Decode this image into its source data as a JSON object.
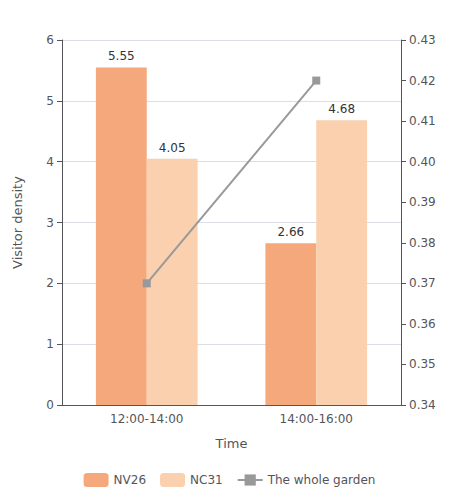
{
  "chart_data": {
    "type": "bar",
    "xlabel": "Time",
    "ylabel": "Visitor density",
    "categories": [
      "12:00-14:00",
      "14:00-16:00"
    ],
    "series": [
      {
        "name": "NV26",
        "type": "bar",
        "color": "#F5A87C",
        "values": [
          5.55,
          2.66
        ],
        "data_labels": true
      },
      {
        "name": "NC31",
        "type": "bar",
        "color": "#FAD0AE",
        "values": [
          4.05,
          4.68
        ],
        "data_labels": true
      },
      {
        "name": "The whole garden",
        "type": "line",
        "axis": "y2",
        "color": "#999999",
        "marker": "square",
        "values": [
          0.37,
          0.42
        ]
      }
    ],
    "ylim": [
      0,
      6
    ],
    "yticks": [
      0,
      1,
      2,
      3,
      4,
      5,
      6
    ],
    "y2lim": [
      0.34,
      0.43
    ],
    "y2ticks": [
      0.34,
      0.35,
      0.36,
      0.37,
      0.38,
      0.39,
      {
        "value": 0.4,
        "label": "0.40"
      },
      0.41,
      0.42,
      0.43
    ],
    "grid": true,
    "legend": "bottom"
  }
}
